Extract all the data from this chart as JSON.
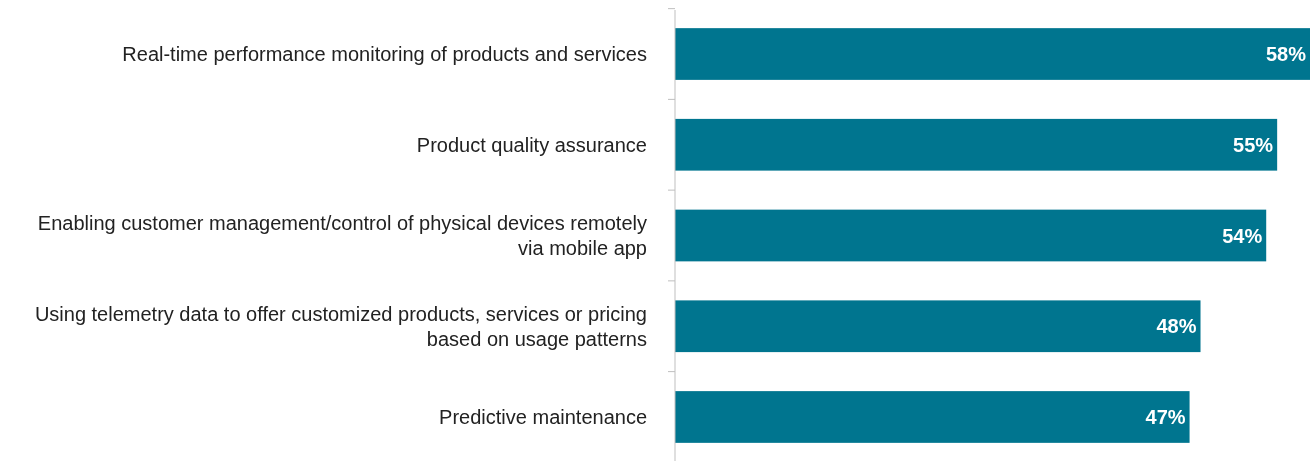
{
  "chart_data": {
    "type": "bar",
    "orientation": "horizontal",
    "categories": [
      "Real-time performance monitoring of products and services",
      "Product quality assurance",
      "Enabling customer management/control of physical devices remotely via mobile app",
      "Using telemetry data to offer customized products, services or pricing based on usage patterns",
      "Predictive maintenance"
    ],
    "values": [
      58,
      55,
      54,
      48,
      47
    ],
    "color": "#00758f",
    "value_labels": [
      "58%",
      "55%",
      "54%",
      "48%",
      "47%"
    ]
  }
}
